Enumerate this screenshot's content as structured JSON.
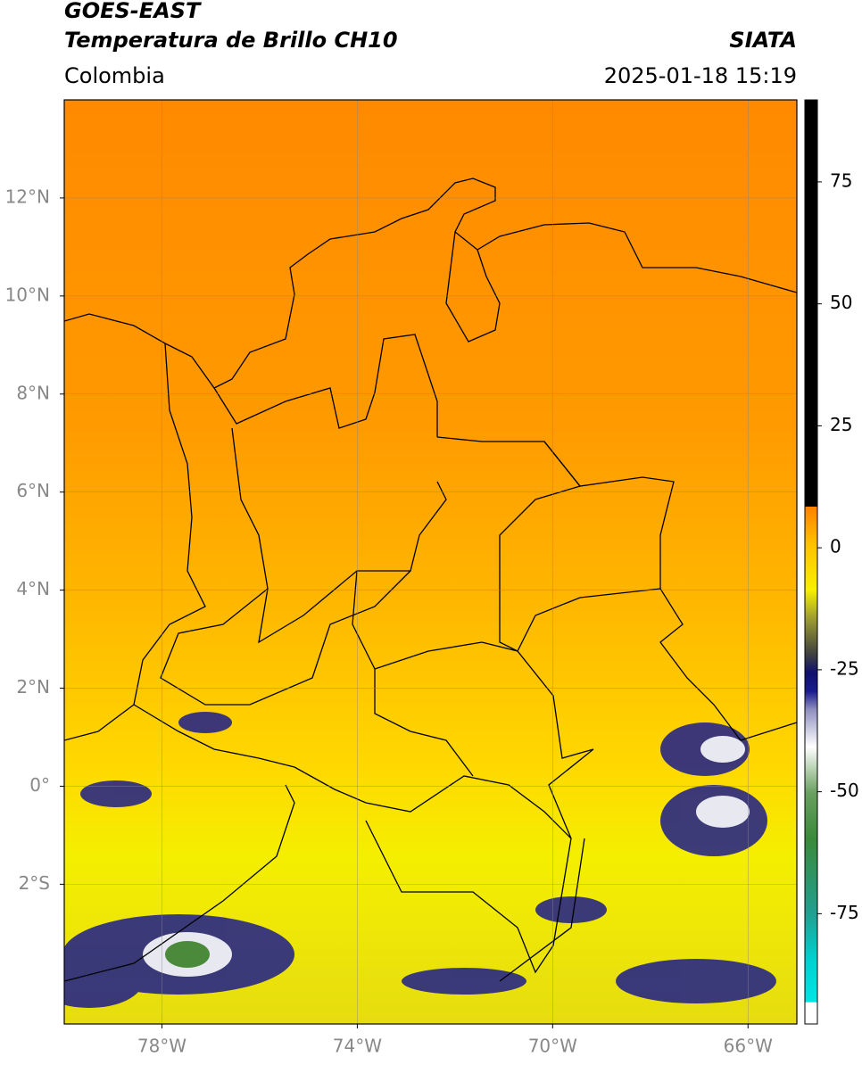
{
  "header": {
    "title": "GOES-EAST",
    "subtitle": "Temperatura de Brillo CH10",
    "region": "Colombia",
    "source": "SIATA",
    "datetime": "2025-01-18 15:19"
  },
  "map": {
    "xlim": [
      -80,
      -65
    ],
    "ylim": [
      -4.85,
      14
    ],
    "xticks": [
      {
        "value": -78,
        "label": "78°W"
      },
      {
        "value": -74,
        "label": "74°W"
      },
      {
        "value": -70,
        "label": "70°W"
      },
      {
        "value": -66,
        "label": "66°W"
      }
    ],
    "yticks": [
      {
        "value": 12,
        "label": "12°N"
      },
      {
        "value": 10,
        "label": "10°N"
      },
      {
        "value": 8,
        "label": "8°N"
      },
      {
        "value": 6,
        "label": "6°N"
      },
      {
        "value": 4,
        "label": "4°N"
      },
      {
        "value": 2,
        "label": "2°N"
      },
      {
        "value": 0,
        "label": "0°"
      },
      {
        "value": -2,
        "label": "2°S"
      }
    ],
    "grid": true
  },
  "colorbar": {
    "lim": [
      -97.6,
      91.8
    ],
    "ticks": [
      75,
      50,
      25,
      0,
      -25,
      -50,
      -75
    ]
  }
}
